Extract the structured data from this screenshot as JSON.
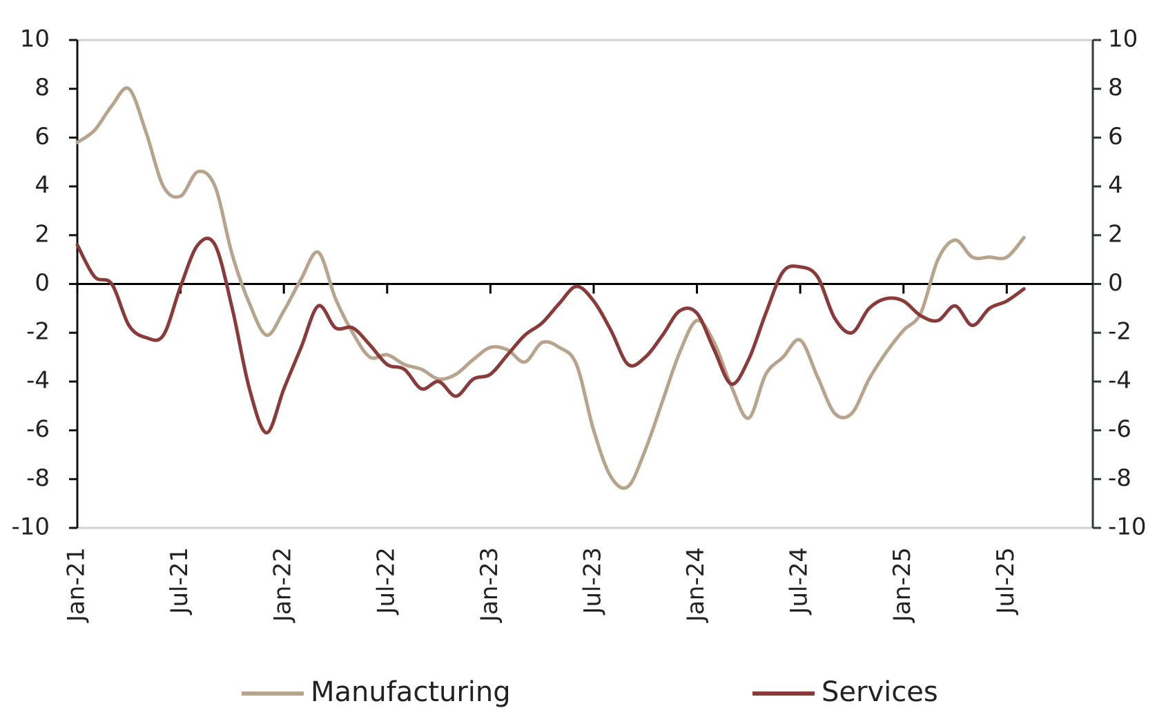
{
  "chart_data": {
    "type": "line",
    "categories": [
      "Jan-21",
      null,
      null,
      null,
      null,
      null,
      "Jul-21",
      null,
      null,
      null,
      null,
      null,
      "Jan-22",
      null,
      null,
      null,
      null,
      null,
      "Jul-22",
      null,
      null,
      null,
      null,
      null,
      "Jan-23",
      null,
      null,
      null,
      null,
      null,
      "Jul-23",
      null,
      null,
      null,
      null,
      null,
      "Jan-24",
      null,
      null,
      null,
      null,
      null,
      "Jul-24",
      null,
      null,
      null,
      null,
      null,
      "Jan-25",
      null,
      null,
      null,
      null,
      null,
      "Jul-25",
      null,
      null,
      null,
      null,
      null
    ],
    "series": [
      {
        "name": "Manufacturing",
        "color": "#b8a48c",
        "values": [
          5.8,
          6.3,
          7.3,
          8.0,
          6.2,
          4.0,
          3.6,
          4.6,
          4.0,
          1.2,
          -0.8,
          -2.1,
          -1.1,
          0.2,
          1.3,
          -0.6,
          -2.0,
          -3.0,
          -2.9,
          -3.3,
          -3.5,
          -3.9,
          -3.7,
          -3.1,
          -2.6,
          -2.7,
          -3.2,
          -2.4,
          -2.6,
          -3.3,
          -6.0,
          -7.9,
          -8.3,
          -6.8,
          -4.8,
          -2.8,
          -1.5,
          -2.4,
          -4.2,
          -5.5,
          -3.7,
          -3.0,
          -2.3,
          -3.8,
          -5.3,
          -5.3,
          -3.9,
          -2.8,
          -1.9,
          -1.2,
          1.0,
          1.8,
          1.1,
          1.1,
          1.1,
          1.9,
          null,
          null,
          null,
          null
        ]
      },
      {
        "name": "Services",
        "color": "#8b3a3a",
        "values": [
          1.6,
          0.3,
          0.0,
          -1.7,
          -2.2,
          -2.1,
          -0.1,
          1.6,
          1.6,
          -1.0,
          -4.3,
          -6.1,
          -4.3,
          -2.6,
          -0.9,
          -1.8,
          -1.8,
          -2.5,
          -3.3,
          -3.5,
          -4.3,
          -4.0,
          -4.6,
          -3.9,
          -3.7,
          -2.9,
          -2.1,
          -1.6,
          -0.8,
          -0.1,
          -0.7,
          -1.9,
          -3.3,
          -3.0,
          -2.1,
          -1.1,
          -1.2,
          -2.7,
          -4.1,
          -3.1,
          -1.2,
          0.5,
          0.7,
          0.3,
          -1.4,
          -2.0,
          -1.0,
          -0.6,
          -0.7,
          -1.3,
          -1.5,
          -0.9,
          -1.7,
          -1.0,
          -0.7,
          -0.2,
          null,
          null,
          null,
          null
        ]
      }
    ],
    "ylim": [
      -10,
      10
    ],
    "yticks": [
      -10,
      -8,
      -6,
      -4,
      -2,
      0,
      2,
      4,
      6,
      8,
      10
    ],
    "y2lim": [
      -10,
      10
    ],
    "y2ticks": [
      -10,
      -8,
      -6,
      -4,
      -2,
      0,
      2,
      4,
      6,
      8,
      10
    ],
    "legend": "bottom"
  }
}
